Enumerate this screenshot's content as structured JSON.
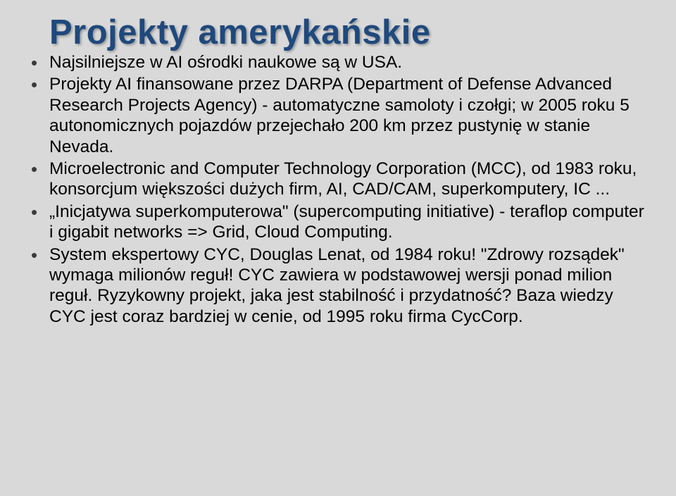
{
  "title": "Projekty amerykańskie",
  "bullets": [
    "Najsilniejsze w AI ośrodki naukowe są w USA.",
    "Projekty AI finansowane przez DARPA (Department of Defense Advanced Research Projects Agency) - automatyczne samoloty i czołgi; w 2005 roku 5 autonomicznych pojazdów przejechało 200 km przez pustynię w stanie Nevada.",
    "Microelectronic and Computer Technology Corporation (MCC), od 1983 roku, konsorcjum większości dużych firm, AI, CAD/CAM, superkomputery, IC ...",
    "„Inicjatywa superkomputerowa\" (supercomputing initiative) - teraflop computer i gigabit networks => Grid, Cloud Computing.",
    "System ekspertowy CYC, Douglas Lenat, od 1984 roku! \"Zdrowy rozsądek\" wymaga milionów reguł! CYC zawiera w podstawowej wersji ponad milion reguł. Ryzykowny projekt, jaka jest stabilność i przydatność? Baza wiedzy CYC jest coraz bardziej w cenie, od 1995 roku firma CycCorp."
  ],
  "colors": {
    "background": "#d9d9d9",
    "title": "#1f497d",
    "text": "#000000",
    "bullet": "#3a3a3a"
  },
  "typography": {
    "title_fontsize": 49,
    "title_weight": "bold",
    "body_fontsize": 24.5,
    "font_family": "Arial"
  }
}
